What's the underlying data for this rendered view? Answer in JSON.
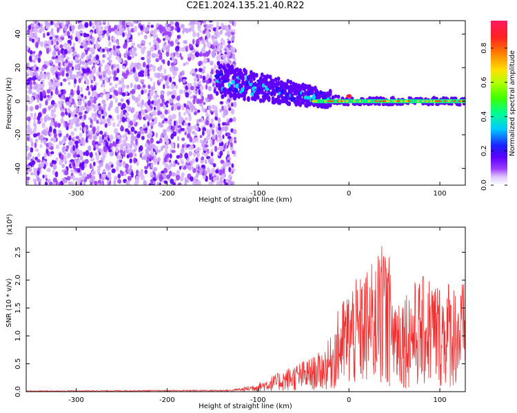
{
  "title": "C2E1.2024.135.21.40.R22",
  "colorbar": {
    "label": "Normalized spectral amplitude",
    "ticks": [
      0.0,
      0.2,
      0.4,
      0.6,
      0.8
    ],
    "range": [
      0.0,
      0.96
    ]
  },
  "chart_data": [
    {
      "type": "heatmap",
      "xlabel": "Height of straight line (km)",
      "ylabel": "Frequency (Hz)",
      "xlim": [
        -355,
        128
      ],
      "ylim": [
        -50,
        48
      ],
      "xticks": [
        -300,
        -200,
        -100,
        0,
        100
      ],
      "yticks": [
        -40,
        -20,
        0,
        20,
        40
      ],
      "colormap": [
        "#ffffff",
        "#d9b8ff",
        "#9a3cff",
        "#6000ff",
        "#2010ff",
        "#00d8ff",
        "#00ff80",
        "#7fff00",
        "#ffd000",
        "#ff5000",
        "#ff1a40"
      ],
      "regions": {
        "noise_field": {
          "x": [
            -355,
            -135
          ],
          "y": [
            -50,
            48
          ],
          "mean_amplitude": 0.12
        },
        "echo_line": {
          "x": [
            -145,
            128
          ],
          "center_frequency_hz": 0,
          "start_frequency_hz": 13,
          "peak_amplitude": 0.96
        }
      }
    },
    {
      "type": "line",
      "xlabel": "Height of straight line (km)",
      "ylabel": "SNR (10 * v/v)",
      "multiplier": "(x10⁴)",
      "xlim": [
        -355,
        128
      ],
      "ylim": [
        0,
        2.95
      ],
      "xticks": [
        -300,
        -200,
        -100,
        0,
        100
      ],
      "yticks": [
        0.0,
        0.5,
        1.0,
        1.5,
        2.0,
        2.5
      ],
      "color": "#f03030",
      "envelope": {
        "x": [
          -355,
          -130,
          -115,
          -100,
          -85,
          -70,
          -55,
          -40,
          -30,
          -20,
          -15,
          -10,
          -5,
          0,
          5,
          10,
          15,
          20,
          25,
          30,
          35,
          38,
          42,
          48,
          55,
          62,
          70,
          80,
          90,
          100,
          110,
          120,
          128
        ],
        "y": [
          0.01,
          0.02,
          0.05,
          0.1,
          0.17,
          0.25,
          0.32,
          0.38,
          0.45,
          0.6,
          0.8,
          0.95,
          1.05,
          1.15,
          1.25,
          1.2,
          1.3,
          1.35,
          1.4,
          1.45,
          1.55,
          1.85,
          1.4,
          1.25,
          1.15,
          1.15,
          1.2,
          1.25,
          1.3,
          1.2,
          1.25,
          1.2,
          1.2
        ]
      }
    }
  ]
}
